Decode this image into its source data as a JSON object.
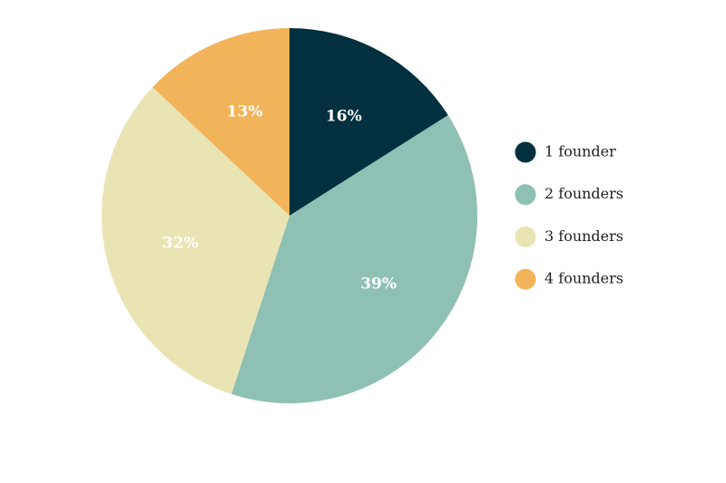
{
  "chart_data": {
    "type": "pie",
    "title": "",
    "legend_position": "right",
    "slices": [
      {
        "label": "1 founder",
        "value": 16,
        "display": "16%",
        "color": "#02303f"
      },
      {
        "label": "2 founders",
        "value": 39,
        "display": "39%",
        "color": "#8fc0b4"
      },
      {
        "label": "3 founders",
        "value": 32,
        "display": "32%",
        "color": "#e9e4b4"
      },
      {
        "label": "4 founders",
        "value": 13,
        "display": "13%",
        "color": "#f2b45a"
      }
    ]
  }
}
